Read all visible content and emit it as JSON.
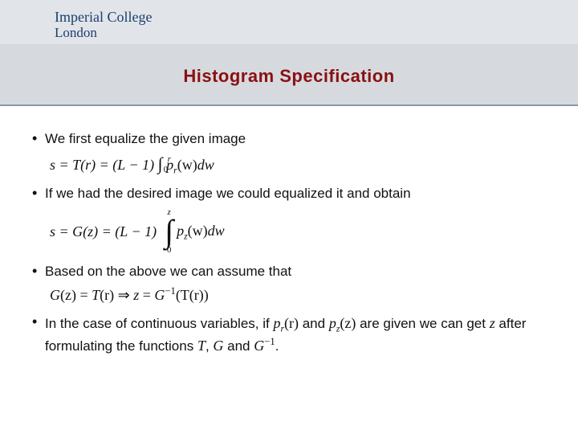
{
  "colors": {
    "header_bg": "#e1e5e9",
    "header_mid": "#d6dadf",
    "rule": "#8a98a8",
    "logo": "#1d3e6e",
    "title": "#8a1010",
    "body": "#111111"
  },
  "logo": {
    "line1": "Imperial College",
    "line2": "London"
  },
  "title": {
    "text": "Histogram Specification",
    "fontsize": 22
  },
  "bullets": [
    {
      "text": "We first equalize the given image",
      "equation_inline": "s = T(r) = (L − 1) ∫₀ʳ p_r(w) dw",
      "equation": {
        "lhs": "s = T(r) = (L − 1)",
        "integral": {
          "lower": "0",
          "upper": "r"
        },
        "integrand": "p",
        "sub": "r",
        "arg": "(w)",
        "dw": "dw"
      }
    },
    {
      "text": "If we had the desired image we could equalized it and obtain",
      "equation_display": "s = G(z) = (L − 1) ∫₀ᶻ p_z(w) dw",
      "equation": {
        "lhs": "s = G(z) = (L − 1)",
        "integral": {
          "lower": "0",
          "upper": "z"
        },
        "integrand": "p",
        "sub": "z",
        "arg": "(w)",
        "dw": "dw"
      }
    },
    {
      "text": "Based on the above we can assume that",
      "equation_line": "G(z) = T(r) ⇒ z = G⁻¹(T(r))",
      "equation": {
        "g": "G",
        "z": "(z)",
        "eq": " = ",
        "t": "T",
        "r": "(r)",
        "implies": " ⇒ ",
        "zvar": "z",
        "eq2": " = ",
        "ginv_g": "G",
        "ginv_sup": "−1",
        "tr": "(T(r))"
      }
    },
    {
      "prefix": "In the case of continuous variables, if ",
      "pr_p": "p",
      "pr_sub": "r",
      "pr_arg": "(r)",
      "mid1": " and ",
      "pz_p": "p",
      "pz_sub": "z",
      "pz_arg": "(z)",
      "mid2": " are given we can get ",
      "zvar": "z",
      "mid3": " after formulating the functions ",
      "T": "T",
      "comma": ", ",
      "G": "G",
      "and": " and ",
      "Ginv_g": "G",
      "Ginv_sup": "−1",
      "period": "."
    }
  ]
}
